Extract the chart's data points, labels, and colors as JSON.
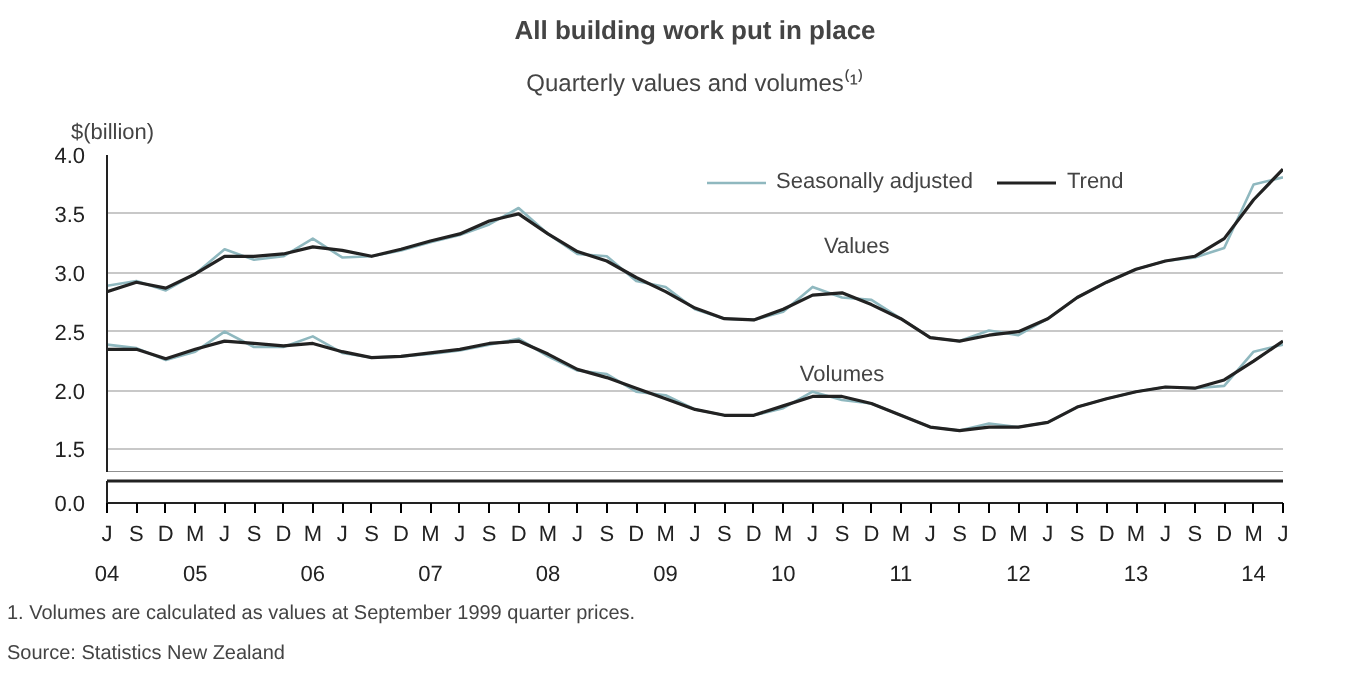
{
  "chart_data": {
    "type": "line",
    "title": "All building work put in place",
    "subtitle": "Quarterly values and volumes⁽¹⁾",
    "ylabel": "$(billion)",
    "categories": [
      "J",
      "S",
      "D",
      "M",
      "J",
      "S",
      "D",
      "M",
      "J",
      "S",
      "D",
      "M",
      "J",
      "S",
      "D",
      "M",
      "J",
      "S",
      "D",
      "M",
      "J",
      "S",
      "D",
      "M",
      "J",
      "S",
      "D",
      "M",
      "J",
      "S",
      "D",
      "M",
      "J",
      "S",
      "D",
      "M",
      "J",
      "S",
      "D",
      "M",
      "J"
    ],
    "series": [
      {
        "name": "Seasonally adjusted",
        "color": "#8fb8bf",
        "values": [
          2.89,
          2.93,
          2.85,
          2.99,
          3.2,
          3.11,
          3.14,
          3.29,
          3.13,
          3.14,
          3.19,
          3.26,
          3.32,
          3.41,
          3.55,
          3.33,
          3.16,
          3.14,
          2.93,
          2.88,
          2.69,
          2.61,
          2.6,
          2.67,
          2.88,
          2.79,
          2.77,
          2.61,
          2.45,
          2.42,
          2.51,
          2.47,
          2.61,
          2.79,
          2.92,
          3.03,
          3.1,
          3.13,
          3.21,
          3.75,
          3.81
        ]
      },
      {
        "name": "Trend",
        "color": "#222222",
        "values": [
          2.84,
          2.92,
          2.87,
          2.99,
          3.14,
          3.14,
          3.16,
          3.22,
          3.19,
          3.14,
          3.2,
          3.27,
          3.33,
          3.44,
          3.5,
          3.33,
          3.18,
          3.1,
          2.96,
          2.84,
          2.7,
          2.61,
          2.6,
          2.69,
          2.81,
          2.83,
          2.73,
          2.61,
          2.45,
          2.42,
          2.47,
          2.5,
          2.61,
          2.79,
          2.92,
          3.03,
          3.1,
          3.14,
          3.29,
          3.62,
          3.88
        ]
      },
      {
        "color": "#8fb8bf",
        "values": [
          2.39,
          2.36,
          2.26,
          2.33,
          2.5,
          2.37,
          2.37,
          2.46,
          2.32,
          2.28,
          2.29,
          2.31,
          2.34,
          2.39,
          2.44,
          2.29,
          2.17,
          2.14,
          1.99,
          1.96,
          1.84,
          1.79,
          1.79,
          1.85,
          1.99,
          1.92,
          1.89,
          1.79,
          1.69,
          1.66,
          1.72,
          1.69,
          1.73,
          1.86,
          1.93,
          1.99,
          2.03,
          2.02,
          2.04,
          2.33,
          2.39
        ]
      },
      {
        "color": "#222222",
        "values": [
          2.35,
          2.35,
          2.27,
          2.35,
          2.42,
          2.4,
          2.38,
          2.4,
          2.33,
          2.28,
          2.29,
          2.32,
          2.35,
          2.4,
          2.42,
          2.31,
          2.18,
          2.11,
          2.02,
          1.93,
          1.84,
          1.79,
          1.79,
          1.87,
          1.95,
          1.95,
          1.89,
          1.79,
          1.69,
          1.66,
          1.69,
          1.69,
          1.73,
          1.86,
          1.93,
          1.99,
          2.03,
          2.02,
          2.09,
          2.25,
          2.42
        ]
      }
    ],
    "ylim": [
      1.3,
      4.0
    ],
    "yticks": [
      1.5,
      {
        "value": 2,
        "label": "2.0"
      },
      2.5,
      {
        "value": 3,
        "label": "3.0"
      },
      3.5,
      {
        "value": 4,
        "label": "4.0"
      }
    ],
    "grid": "y",
    "legend": "top right",
    "marker": "none",
    "line_style": "solid",
    "annotations": [
      "Values",
      "Volumes",
      "0.0",
      "04",
      "05",
      "06",
      "07",
      "08",
      "09",
      "10",
      "11",
      "12",
      "13",
      "14",
      "1. Volumes are calculated as values at September 1999 quarter prices.",
      "Source: Statistics New Zealand"
    ]
  }
}
